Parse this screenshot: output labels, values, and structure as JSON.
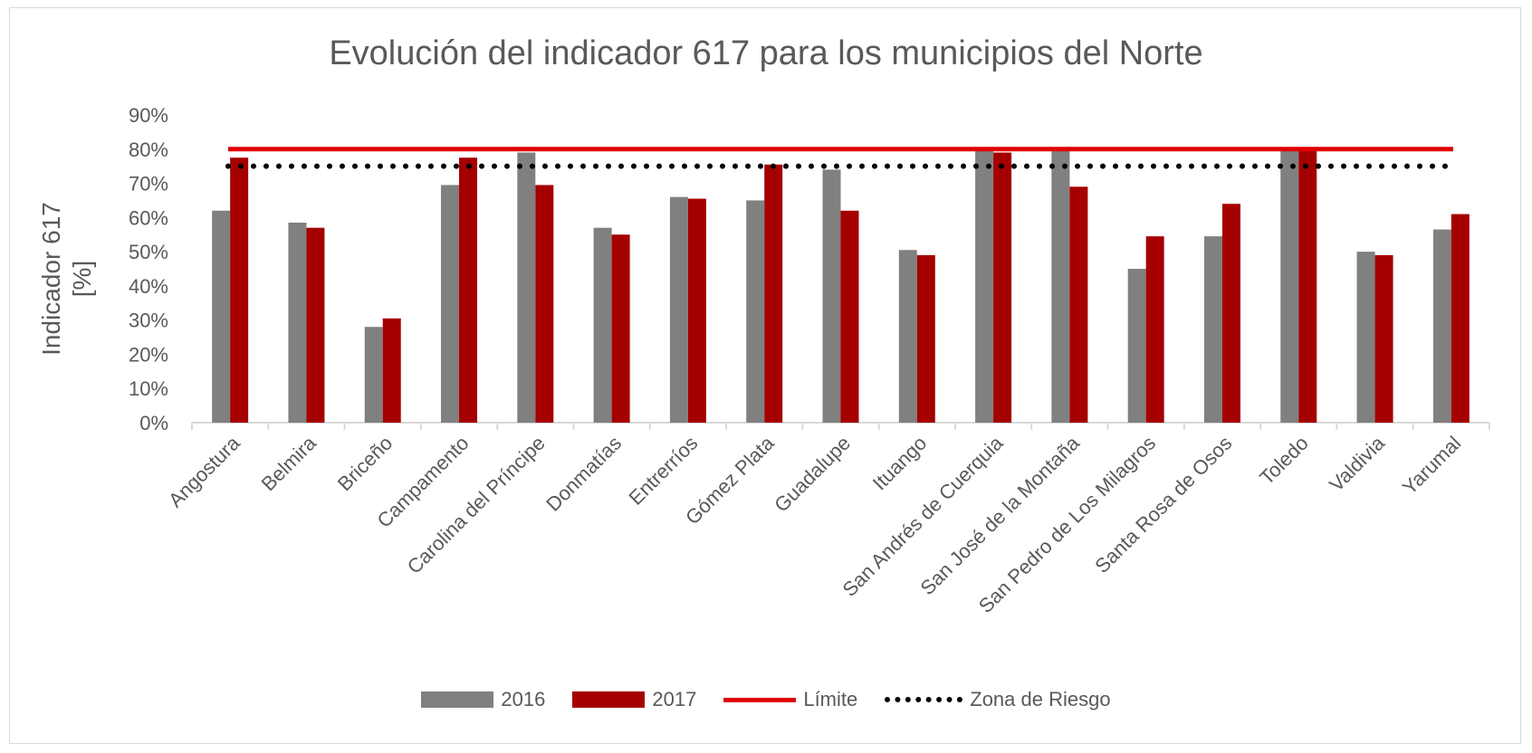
{
  "chart_data": {
    "type": "bar",
    "title": "Evolución del indicador 617 para los municipios del Norte",
    "ylabel_line1": "Indicador 617",
    "ylabel_line2": "[%]",
    "xlabel": "",
    "ylim": [
      0,
      90
    ],
    "yticks": [
      "0%",
      "10%",
      "20%",
      "30%",
      "40%",
      "50%",
      "60%",
      "70%",
      "80%",
      "90%"
    ],
    "categories": [
      "Angostura",
      "Belmira",
      "Briceño",
      "Campamento",
      "Carolina del Príncipe",
      "Donmatías",
      "Entrerríos",
      "Gómez Plata",
      "Guadalupe",
      "Ituango",
      "San Andrés de Cuerquia",
      "San José de la Montaña",
      "San Pedro de Los Milagros",
      "Santa Rosa de Osos",
      "Toledo",
      "Valdivia",
      "Yarumal"
    ],
    "series": [
      {
        "name": "2016",
        "color": "#808080",
        "values": [
          62,
          58.5,
          28,
          69.5,
          79,
          57,
          66,
          65,
          74,
          50.5,
          80,
          80,
          45,
          54.5,
          80,
          50,
          56.5
        ]
      },
      {
        "name": "2017",
        "color": "#a50000",
        "values": [
          77.5,
          57,
          30.5,
          77.5,
          69.5,
          55,
          65.5,
          75.5,
          62,
          49,
          79,
          69,
          54.5,
          64,
          80,
          49,
          61
        ]
      }
    ],
    "reference_lines": [
      {
        "name": "Límite",
        "value": 80,
        "color": "#e00000",
        "style": "solid"
      },
      {
        "name": "Zona de Riesgo",
        "value": 75,
        "color": "#000000",
        "style": "dotted"
      }
    ],
    "legend_position": "bottom",
    "grid": false
  }
}
